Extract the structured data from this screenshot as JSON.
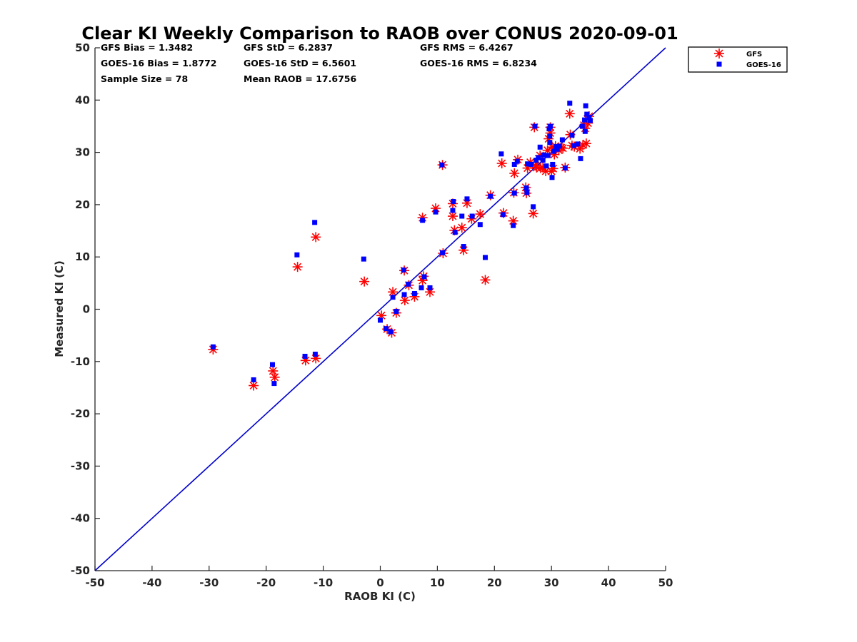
{
  "chart_data": {
    "type": "scatter",
    "title": "Clear KI Weekly Comparison to RAOB over CONUS 2020-09-01",
    "xlabel": "RAOB KI (C)",
    "ylabel": "Measured KI (C)",
    "xlim": [
      -50,
      50
    ],
    "ylim": [
      -50,
      50
    ],
    "xticks": [
      "-50",
      "-40",
      "-30",
      "-20",
      "-10",
      "0",
      "10",
      "20",
      "30",
      "40",
      "50"
    ],
    "yticks": [
      "50",
      "40",
      "30",
      "20",
      "10",
      "0",
      "-10",
      "-20",
      "-30",
      "-40",
      "-50"
    ],
    "reference_line": {
      "x": [
        -50,
        50
      ],
      "y": [
        -50,
        50
      ],
      "color": "#0000cc"
    },
    "stats": [
      [
        "GFS Bias = 1.3482",
        "GFS StD = 6.2837",
        "GFS RMS = 6.4267"
      ],
      [
        "GOES-16 Bias = 1.8772",
        "GOES-16 StD = 6.5601",
        "GOES-16 RMS = 6.8234"
      ],
      [
        "Sample Size = 78",
        "Mean RAOB = 17.6756",
        ""
      ]
    ],
    "legend": {
      "position": "top-right-outside",
      "entries": [
        "GFS",
        "GOES-16"
      ]
    },
    "series": [
      {
        "name": "GFS",
        "marker": "asterisk",
        "color": "#ff0000",
        "points": [
          [
            -29.3,
            -7.7
          ],
          [
            -22.2,
            -14.6
          ],
          [
            -18.8,
            -11.8
          ],
          [
            -18.5,
            -13.0
          ],
          [
            -13.1,
            -9.8
          ],
          [
            -11.3,
            -9.4
          ],
          [
            -14.5,
            8.1
          ],
          [
            -11.3,
            13.8
          ],
          [
            -2.8,
            5.3
          ],
          [
            0.2,
            -1.2
          ],
          [
            1.2,
            -3.8
          ],
          [
            2.0,
            -4.5
          ],
          [
            2.8,
            -0.7
          ],
          [
            2.2,
            3.3
          ],
          [
            4.3,
            1.7
          ],
          [
            4.2,
            7.4
          ],
          [
            5.0,
            4.6
          ],
          [
            6.0,
            2.4
          ],
          [
            7.4,
            5.5
          ],
          [
            7.6,
            6.3
          ],
          [
            8.7,
            3.3
          ],
          [
            7.4,
            17.5
          ],
          [
            9.7,
            19.3
          ],
          [
            11.0,
            10.7
          ],
          [
            10.9,
            27.6
          ],
          [
            12.7,
            17.8
          ],
          [
            12.7,
            20.2
          ],
          [
            13.0,
            15.1
          ],
          [
            14.3,
            15.6
          ],
          [
            14.6,
            11.3
          ],
          [
            15.2,
            20.3
          ],
          [
            16.0,
            17.3
          ],
          [
            17.5,
            18.2
          ],
          [
            18.4,
            5.6
          ],
          [
            19.3,
            21.8
          ],
          [
            21.3,
            27.9
          ],
          [
            21.6,
            18.4
          ],
          [
            23.3,
            16.9
          ],
          [
            23.4,
            22.3
          ],
          [
            23.5,
            26.0
          ],
          [
            24.1,
            28.6
          ],
          [
            25.5,
            23.3
          ],
          [
            25.6,
            22.2
          ],
          [
            25.8,
            27.0
          ],
          [
            26.3,
            28.1
          ],
          [
            26.8,
            18.3
          ],
          [
            27.0,
            34.8
          ],
          [
            27.4,
            27.1
          ],
          [
            28.0,
            29.4
          ],
          [
            28.5,
            27.1
          ],
          [
            29.0,
            26.4
          ],
          [
            29.3,
            30.4
          ],
          [
            29.5,
            32.6
          ],
          [
            29.8,
            34.8
          ],
          [
            30.0,
            26.4
          ],
          [
            30.3,
            26.9
          ],
          [
            30.5,
            29.6
          ],
          [
            30.7,
            31.2
          ],
          [
            31.3,
            30.4
          ],
          [
            32.4,
            27.1
          ],
          [
            33.2,
            37.4
          ],
          [
            33.3,
            33.4
          ],
          [
            33.6,
            31.3
          ],
          [
            34.0,
            31.1
          ],
          [
            35.0,
            30.7
          ],
          [
            35.5,
            31.4
          ],
          [
            35.7,
            35.2
          ],
          [
            35.9,
            34.6
          ],
          [
            36.1,
            31.7
          ],
          [
            36.3,
            36.4
          ],
          [
            36.6,
            36.9
          ],
          [
            29.8,
            33.7
          ],
          [
            28.1,
            27.0
          ],
          [
            31.7,
            30.9
          ],
          [
            27.2,
            27.5
          ],
          [
            30.1,
            31.0
          ],
          [
            36.4,
            35.6
          ],
          [
            32.0,
            30.8
          ]
        ]
      },
      {
        "name": "GOES-16",
        "marker": "square",
        "color": "#0000ff",
        "points": [
          [
            -29.3,
            -7.2
          ],
          [
            -22.2,
            -13.5
          ],
          [
            -18.9,
            -10.6
          ],
          [
            -18.6,
            -14.2
          ],
          [
            -13.2,
            -9.0
          ],
          [
            -11.4,
            -8.6
          ],
          [
            -14.6,
            10.4
          ],
          [
            -11.5,
            16.6
          ],
          [
            -2.9,
            9.6
          ],
          [
            0.0,
            -2.1
          ],
          [
            1.0,
            -3.7
          ],
          [
            1.8,
            -4.3
          ],
          [
            2.8,
            -0.4
          ],
          [
            2.2,
            2.3
          ],
          [
            4.2,
            2.8
          ],
          [
            4.1,
            7.5
          ],
          [
            4.9,
            4.8
          ],
          [
            6.0,
            3.0
          ],
          [
            7.2,
            4.1
          ],
          [
            7.7,
            6.2
          ],
          [
            8.7,
            4.1
          ],
          [
            7.4,
            17.0
          ],
          [
            9.7,
            18.6
          ],
          [
            10.9,
            10.8
          ],
          [
            10.8,
            27.6
          ],
          [
            12.7,
            18.9
          ],
          [
            12.8,
            20.6
          ],
          [
            13.1,
            14.7
          ],
          [
            14.3,
            17.8
          ],
          [
            14.6,
            12.0
          ],
          [
            15.2,
            21.1
          ],
          [
            16.1,
            17.8
          ],
          [
            17.5,
            16.2
          ],
          [
            18.4,
            9.9
          ],
          [
            19.3,
            21.6
          ],
          [
            21.2,
            29.7
          ],
          [
            21.5,
            18.1
          ],
          [
            23.3,
            16.0
          ],
          [
            23.5,
            22.2
          ],
          [
            23.5,
            27.7
          ],
          [
            24.0,
            28.3
          ],
          [
            25.6,
            23.2
          ],
          [
            25.7,
            22.3
          ],
          [
            25.8,
            27.8
          ],
          [
            26.4,
            27.7
          ],
          [
            26.8,
            19.6
          ],
          [
            27.1,
            35.0
          ],
          [
            27.3,
            28.5
          ],
          [
            28.0,
            31.0
          ],
          [
            28.5,
            28.5
          ],
          [
            29.1,
            27.4
          ],
          [
            29.4,
            29.4
          ],
          [
            29.6,
            34.5
          ],
          [
            29.7,
            33.1
          ],
          [
            30.1,
            25.2
          ],
          [
            30.2,
            27.7
          ],
          [
            30.4,
            30.2
          ],
          [
            30.8,
            31.1
          ],
          [
            31.4,
            31.2
          ],
          [
            32.4,
            27.0
          ],
          [
            33.2,
            39.4
          ],
          [
            33.6,
            33.3
          ],
          [
            33.9,
            31.3
          ],
          [
            34.6,
            31.6
          ],
          [
            35.1,
            28.8
          ],
          [
            35.4,
            35.0
          ],
          [
            35.8,
            36.2
          ],
          [
            35.9,
            34.0
          ],
          [
            36.0,
            38.9
          ],
          [
            36.2,
            37.3
          ],
          [
            36.6,
            36.7
          ],
          [
            36.8,
            36.1
          ],
          [
            29.7,
            31.9
          ],
          [
            28.6,
            29.5
          ],
          [
            31.0,
            30.6
          ],
          [
            27.7,
            29.0
          ],
          [
            29.8,
            35.0
          ],
          [
            31.9,
            32.4
          ]
        ]
      }
    ]
  }
}
